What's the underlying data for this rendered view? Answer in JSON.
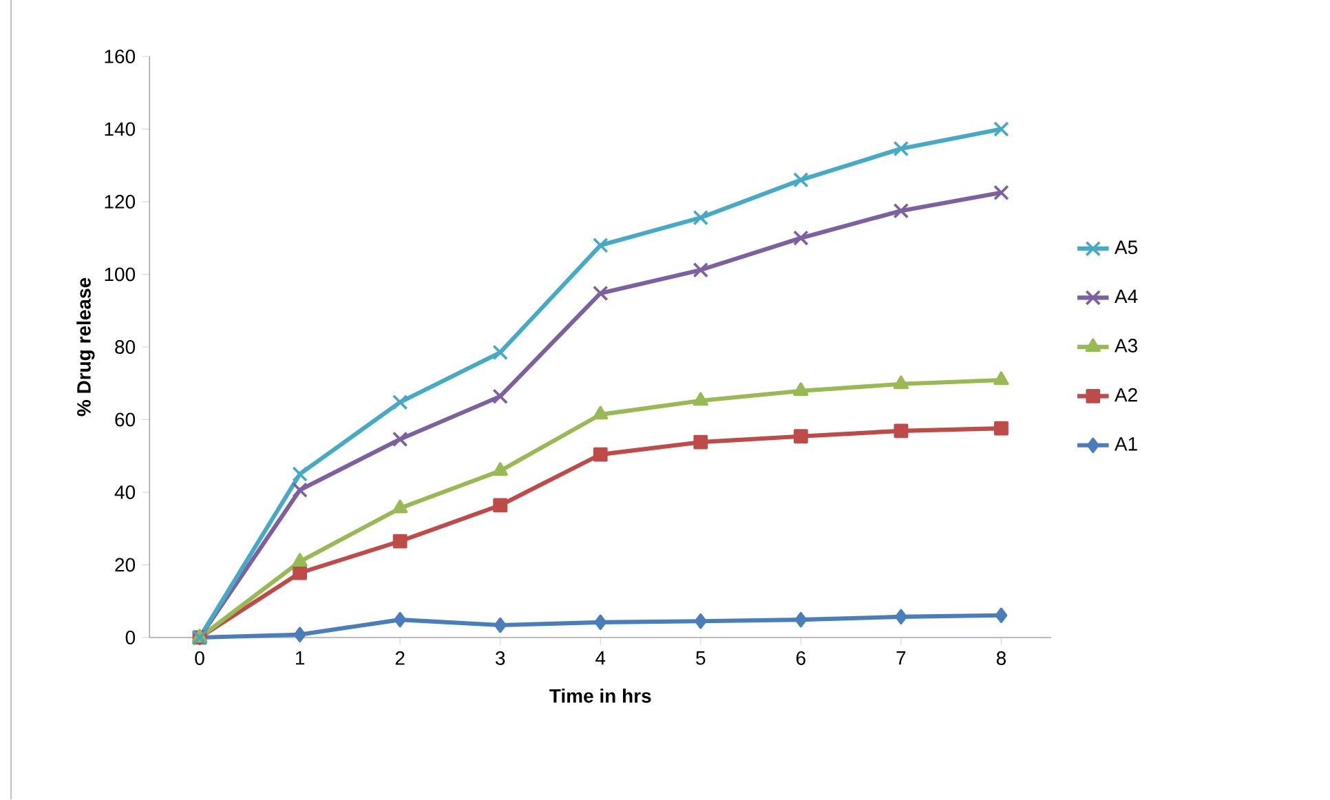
{
  "chart_data": {
    "type": "line",
    "xlabel": "Time in hrs",
    "ylabel": "% Drug release",
    "categories": [
      "0",
      "1",
      "2",
      "3",
      "4",
      "5",
      "6",
      "7",
      "8"
    ],
    "ylim": [
      0,
      160
    ],
    "yticks": [
      0,
      20,
      40,
      60,
      80,
      100,
      120,
      140,
      160
    ],
    "grid": false,
    "legend": "right",
    "line_style": "solid",
    "series": [
      {
        "name": "A1",
        "color": "#4a7ebb",
        "marker": "diamond",
        "values": [
          0,
          0.8,
          4.9,
          3.4,
          4.2,
          4.5,
          4.9,
          5.7,
          6.1
        ]
      },
      {
        "name": "A2",
        "color": "#be4b48",
        "marker": "square",
        "values": [
          0,
          17.8,
          26.5,
          36.4,
          50.4,
          53.8,
          55.4,
          56.9,
          57.6
        ]
      },
      {
        "name": "A3",
        "color": "#98b954",
        "marker": "triangle",
        "values": [
          0,
          20.9,
          35.6,
          45.9,
          61.4,
          65.2,
          67.9,
          69.8,
          70.9
        ]
      },
      {
        "name": "A4",
        "color": "#7d60a0",
        "marker": "cross",
        "values": [
          0,
          40.6,
          54.6,
          66.4,
          94.8,
          101.2,
          110,
          117.5,
          122.5
        ]
      },
      {
        "name": "A5",
        "color": "#46aac5",
        "marker": "cross",
        "values": [
          0,
          45,
          64.8,
          78.5,
          108,
          115.6,
          126,
          134.6,
          140
        ]
      }
    ]
  }
}
